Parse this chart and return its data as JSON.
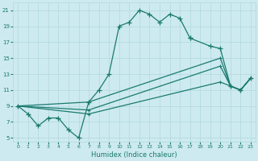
{
  "xlabel": "Humidex (Indice chaleur)",
  "bg_color": "#cdeaf0",
  "grid_color": "#b0d8e0",
  "line_color": "#1a7a6e",
  "xlim": [
    -0.5,
    23.5
  ],
  "ylim": [
    4.5,
    22
  ],
  "xticks": [
    0,
    1,
    2,
    3,
    4,
    5,
    6,
    7,
    8,
    9,
    10,
    11,
    12,
    13,
    14,
    15,
    16,
    17,
    18,
    19,
    20,
    21,
    22,
    23
  ],
  "yticks": [
    5,
    7,
    9,
    11,
    13,
    15,
    17,
    19,
    21
  ],
  "line1_x": [
    0,
    1,
    2,
    3,
    4,
    5,
    6,
    7,
    8,
    9,
    10,
    11,
    12,
    13,
    14,
    15,
    16,
    17
  ],
  "line1_y": [
    9.0,
    8.0,
    6.5,
    7.5,
    7.5,
    6.0,
    5.0,
    9.5,
    11.0,
    13.0,
    19.0,
    19.5,
    21.0,
    20.5,
    19.5,
    20.5,
    20.0,
    17.5
  ],
  "line2_x": [
    17,
    19,
    20,
    21,
    22,
    23
  ],
  "line2_y": [
    17.5,
    16.5,
    16.2,
    11.5,
    11.0,
    12.5
  ],
  "line3_x": [
    0,
    7,
    20,
    21,
    22,
    23
  ],
  "line3_y": [
    9.0,
    9.5,
    15.0,
    11.5,
    11.0,
    12.5
  ],
  "line4_x": [
    0,
    7,
    20,
    21,
    22,
    23
  ],
  "line4_y": [
    9.0,
    8.5,
    14.0,
    11.5,
    11.0,
    12.5
  ],
  "line5_x": [
    0,
    7,
    20,
    21,
    22,
    23
  ],
  "line5_y": [
    9.0,
    8.0,
    12.0,
    11.5,
    11.0,
    12.5
  ]
}
